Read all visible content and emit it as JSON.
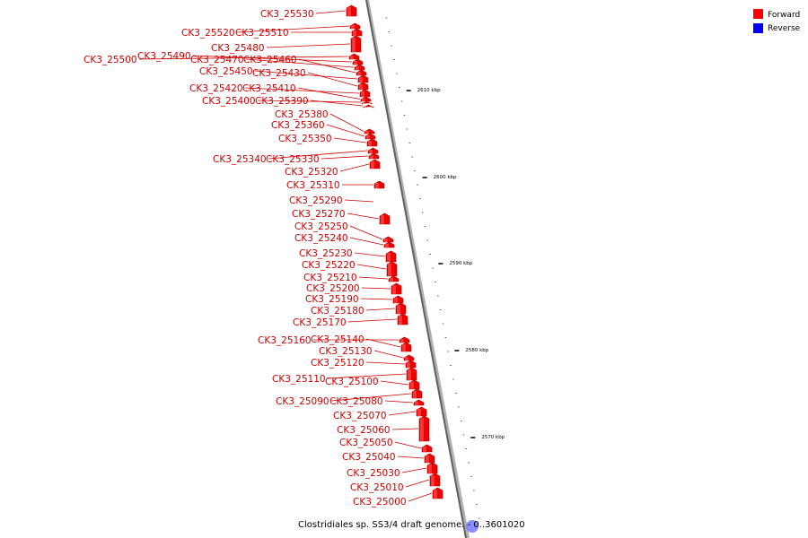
{
  "legend": {
    "items": [
      {
        "label": "Forward",
        "color": "#ff0000"
      },
      {
        "label": "Reverse",
        "color": "#0000ff"
      }
    ]
  },
  "ticks": [
    "2610 kbp",
    "2600 kbp",
    "2590 kbp",
    "2580 kbp",
    "2570 kbp"
  ],
  "caption": "Clostridiales sp. SS3/4 draft genome. - 0..3601020",
  "genes": [
    "CK3_25530",
    "CK3_25520",
    "CK3_25510",
    "CK3_25480",
    "CK3_25500",
    "CK3_25490",
    "CK3_25470",
    "CK3_25460",
    "CK3_25450",
    "CK3_25430",
    "CK3_25420",
    "CK3_25410",
    "CK3_25400",
    "CK3_25390",
    "CK3_25380",
    "CK3_25360",
    "CK3_25350",
    "CK3_25340",
    "CK3_25330",
    "CK3_25320",
    "CK3_25310",
    "CK3_25290",
    "CK3_25270",
    "CK3_25250",
    "CK3_25240",
    "CK3_25230",
    "CK3_25220",
    "CK3_25210",
    "CK3_25200",
    "CK3_25190",
    "CK3_25180",
    "CK3_25170",
    "CK3_25160",
    "CK3_25140",
    "CK3_25130",
    "CK3_25120",
    "CK3_25110",
    "CK3_25100",
    "CK3_25090",
    "CK3_25080",
    "CK3_25070",
    "CK3_25060",
    "CK3_25050",
    "CK3_25040",
    "CK3_25030",
    "CK3_25010",
    "CK3_25000"
  ]
}
